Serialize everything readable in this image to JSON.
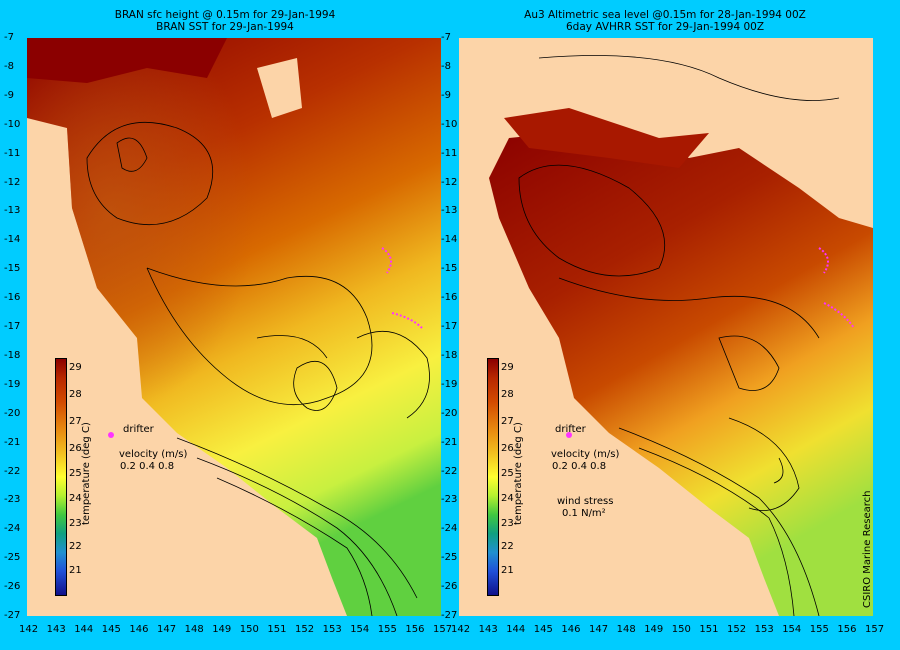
{
  "left_panel": {
    "title_line1": "BRAN sfc height @ 0.15m for 29-Jan-1994",
    "title_line2": "BRAN SST for 29-Jan-1994",
    "legend_ticks": [
      "29",
      "28",
      "27",
      "26",
      "25",
      "24",
      "23",
      "22",
      "21"
    ],
    "legend_title": "temperature (deg C)",
    "drifter_label": "drifter",
    "velocity_label": "velocity (m/s)",
    "velocity_scale": "0.2 0.4 0.8"
  },
  "right_panel": {
    "title_line1": "Au3 Altimetric sea level  @0.15m  for 28-Jan-1994 00Z",
    "title_line2": "6day AVHRR SST for 29-Jan-1994 00Z",
    "legend_ticks": [
      "29",
      "28",
      "27",
      "26",
      "25",
      "24",
      "23",
      "22",
      "21"
    ],
    "legend_title": "temperature (deg C)",
    "drifter_label": "drifter",
    "velocity_label": "velocity (m/s)",
    "velocity_scale": "0.2 0.4 0.8",
    "wind_label": "wind stress",
    "wind_value": "0.1 N/m²"
  },
  "y_axis_ticks": [
    "-7",
    "-8",
    "-9",
    "-10",
    "-11",
    "-12",
    "-13",
    "-14",
    "-15",
    "-16",
    "-17",
    "-18",
    "-19",
    "-20",
    "-21",
    "-22",
    "-23",
    "-24",
    "-25",
    "-26",
    "-27"
  ],
  "x_axis_ticks_left": [
    "142",
    "143",
    "144",
    "145",
    "146",
    "147",
    "148",
    "149",
    "150",
    "151",
    "152",
    "153",
    "154",
    "155",
    "156",
    "157"
  ],
  "x_axis_ticks_right": [
    "142",
    "143",
    "144",
    "145",
    "146",
    "147",
    "148",
    "149",
    "150",
    "151",
    "152",
    "153",
    "154",
    "155",
    "156",
    "157"
  ],
  "credit": "CSIRO Marine Research",
  "colors": {
    "frame_background": "#00ccff",
    "land": "#fcd4a8",
    "sst_warm": "#8b0000",
    "sst_cool": "#40c840",
    "drifter": "#ff33ff"
  }
}
